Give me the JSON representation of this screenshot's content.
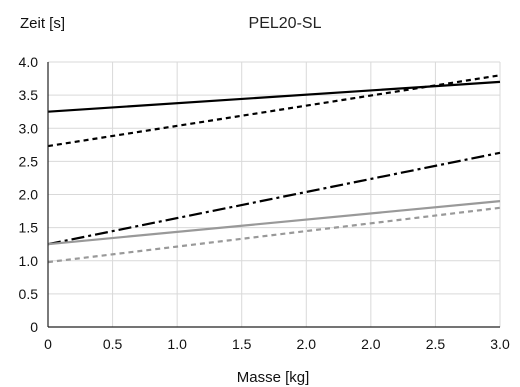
{
  "chart_data": {
    "type": "line",
    "title": "PEL20-SL",
    "ylabel": "Zeit [s]",
    "xlabel": "Masse [kg]",
    "xlim": [
      0,
      3.0
    ],
    "ylim": [
      0,
      4.0
    ],
    "grid": true,
    "x_tick_labels": [
      "0",
      "0.5",
      "1.0",
      "1.5",
      "2.0",
      "2.0",
      "2.5",
      "3.0"
    ],
    "y_tick_labels": [
      "0",
      "0.5",
      "1.0",
      "1.5",
      "2.0",
      "2.5",
      "3.0",
      "3.5",
      "4.0"
    ],
    "series": [
      {
        "color": "#000000",
        "dash": "solid",
        "x": [
          0,
          3.0
        ],
        "y": [
          3.25,
          3.7
        ]
      },
      {
        "color": "#000000",
        "dash": "dashed",
        "x": [
          0,
          3.0
        ],
        "y": [
          2.73,
          3.8
        ]
      },
      {
        "color": "#000000",
        "dash": "dashdot",
        "x": [
          0,
          3.0
        ],
        "y": [
          1.25,
          2.63
        ]
      },
      {
        "color": "#999999",
        "dash": "solid",
        "x": [
          0,
          3.0
        ],
        "y": [
          1.25,
          1.9
        ]
      },
      {
        "color": "#999999",
        "dash": "dashed",
        "x": [
          0,
          3.0
        ],
        "y": [
          0.98,
          1.8
        ]
      }
    ]
  }
}
